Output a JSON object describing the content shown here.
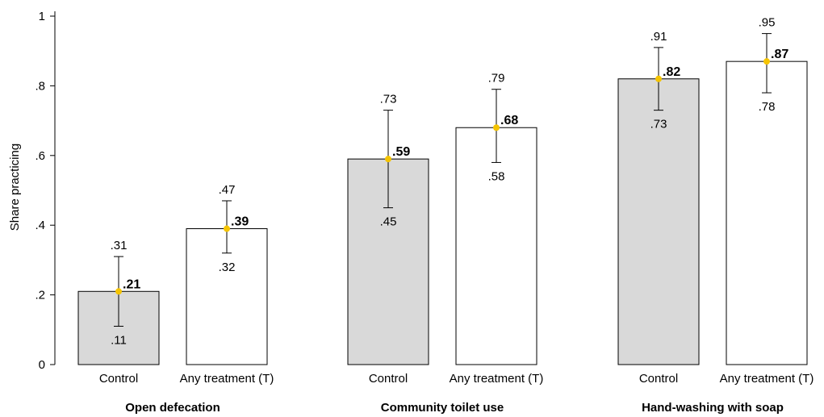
{
  "chart_data": {
    "type": "bar",
    "ylabel": "Share practicing",
    "ylim": [
      0,
      1
    ],
    "yticks": [
      {
        "value": 0,
        "label": "0"
      },
      {
        "value": 0.2,
        "label": ".2"
      },
      {
        "value": 0.4,
        "label": ".4"
      },
      {
        "value": 0.6,
        "label": ".6"
      },
      {
        "value": 0.8,
        "label": ".8"
      },
      {
        "value": 1,
        "label": "1"
      }
    ],
    "grid": false,
    "colors": {
      "control": "#d9d9d9",
      "treatment": "#ffffff",
      "marker": "#f5c400",
      "edge": "#000000"
    },
    "groups": [
      {
        "label": "Open defecation",
        "bars": [
          {
            "label": "Control",
            "fill": "control",
            "value": 0.21,
            "value_label": ".21",
            "ci_low": 0.11,
            "ci_low_label": ".11",
            "ci_high": 0.31,
            "ci_high_label": ".31"
          },
          {
            "label": "Any treatment (T)",
            "fill": "treatment",
            "value": 0.39,
            "value_label": ".39",
            "ci_low": 0.32,
            "ci_low_label": ".32",
            "ci_high": 0.47,
            "ci_high_label": ".47"
          }
        ]
      },
      {
        "label": "Community toilet use",
        "bars": [
          {
            "label": "Control",
            "fill": "control",
            "value": 0.59,
            "value_label": ".59",
            "ci_low": 0.45,
            "ci_low_label": ".45",
            "ci_high": 0.73,
            "ci_high_label": ".73"
          },
          {
            "label": "Any treatment (T)",
            "fill": "treatment",
            "value": 0.68,
            "value_label": ".68",
            "ci_low": 0.58,
            "ci_low_label": ".58",
            "ci_high": 0.79,
            "ci_high_label": ".79"
          }
        ]
      },
      {
        "label": "Hand-washing with soap",
        "bars": [
          {
            "label": "Control",
            "fill": "control",
            "value": 0.82,
            "value_label": ".82",
            "ci_low": 0.73,
            "ci_low_label": ".73",
            "ci_high": 0.91,
            "ci_high_label": ".91"
          },
          {
            "label": "Any treatment (T)",
            "fill": "treatment",
            "value": 0.87,
            "value_label": ".87",
            "ci_low": 0.78,
            "ci_low_label": ".78",
            "ci_high": 0.95,
            "ci_high_label": ".95"
          }
        ]
      }
    ]
  }
}
